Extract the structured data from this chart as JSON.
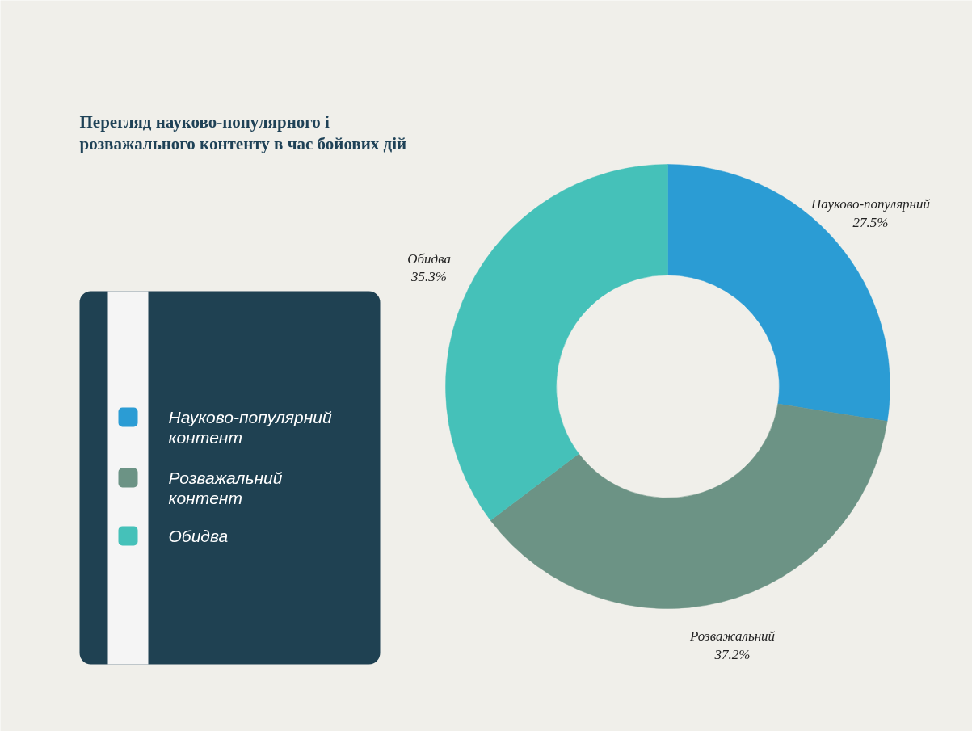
{
  "chart_data": {
    "type": "donut",
    "title": "Перегляд науково-популярного і\nрозважального контенту в час бойових дій",
    "categories": [
      "Науково-популярний контент",
      "Розважальний контент",
      "Обидва"
    ],
    "values": [
      27.5,
      37.2,
      35.3
    ],
    "colors": [
      "#2b9cd4",
      "#6c9385",
      "#45c1b9"
    ],
    "value_labels": [
      "27.5%",
      "37.2%",
      "35.3%"
    ],
    "annotations": [
      "Науково-популярний",
      "Розважальний",
      "Обидва"
    ],
    "legend": "left"
  }
}
